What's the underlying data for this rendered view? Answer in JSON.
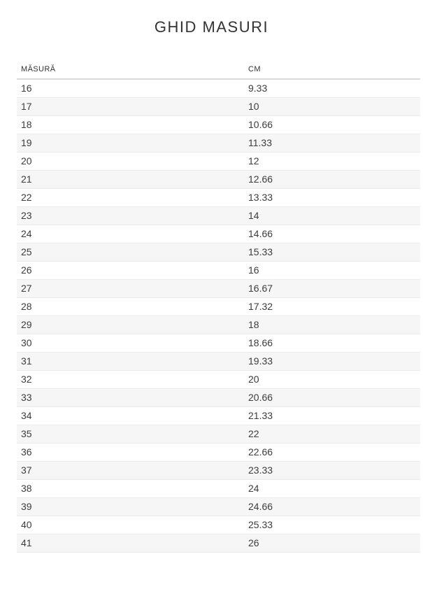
{
  "page": {
    "title": "GHID MASURI"
  },
  "table": {
    "columns": [
      {
        "label": "MĂSURĂ"
      },
      {
        "label": "CM"
      }
    ],
    "rows": [
      {
        "masura": "16",
        "cm": "9.33"
      },
      {
        "masura": "17",
        "cm": "10"
      },
      {
        "masura": "18",
        "cm": "10.66"
      },
      {
        "masura": "19",
        "cm": "11.33"
      },
      {
        "masura": "20",
        "cm": "12"
      },
      {
        "masura": "21",
        "cm": "12.66"
      },
      {
        "masura": "22",
        "cm": "13.33"
      },
      {
        "masura": "23",
        "cm": "14"
      },
      {
        "masura": "24",
        "cm": "14.66"
      },
      {
        "masura": "25",
        "cm": "15.33"
      },
      {
        "masura": "26",
        "cm": "16"
      },
      {
        "masura": "27",
        "cm": "16.67"
      },
      {
        "masura": "28",
        "cm": "17.32"
      },
      {
        "masura": "29",
        "cm": "18"
      },
      {
        "masura": "30",
        "cm": "18.66"
      },
      {
        "masura": "31",
        "cm": "19.33"
      },
      {
        "masura": "32",
        "cm": "20"
      },
      {
        "masura": "33",
        "cm": "20.66"
      },
      {
        "masura": "34",
        "cm": "21.33"
      },
      {
        "masura": "35",
        "cm": "22"
      },
      {
        "masura": "36",
        "cm": "22.66"
      },
      {
        "masura": "37",
        "cm": "23.33"
      },
      {
        "masura": "38",
        "cm": "24"
      },
      {
        "masura": "39",
        "cm": "24.66"
      },
      {
        "masura": "40",
        "cm": "25.33"
      },
      {
        "masura": "41",
        "cm": "26"
      }
    ]
  },
  "colors": {
    "text": "#3c3c3c",
    "title": "#333333",
    "row_alt_background": "#f6f6f6",
    "row_separator": "#ebebeb",
    "header_rule": "#d9d9d9",
    "background": "#ffffff"
  }
}
